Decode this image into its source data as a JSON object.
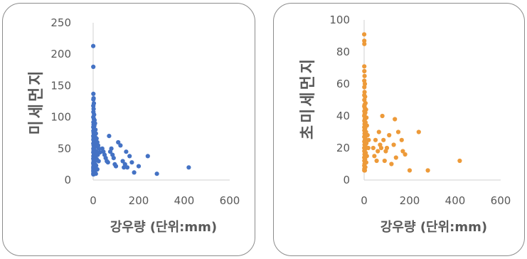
{
  "chart_data": [
    {
      "type": "scatter",
      "title": "",
      "xlabel": "강우량 (단위:mm)",
      "ylabel": "미세먼지",
      "xlim": [
        0,
        600
      ],
      "ylim": [
        0,
        250
      ],
      "xticks": [
        "0",
        "200",
        "400",
        "600"
      ],
      "yticks": [
        "0",
        "50",
        "100",
        "150",
        "200",
        "250"
      ],
      "color": "#4472c4",
      "grid": false,
      "points": [
        [
          0.3,
          213
        ],
        [
          0.5,
          180
        ],
        [
          1,
          137
        ],
        [
          2,
          130
        ],
        [
          1,
          128
        ],
        [
          3,
          122
        ],
        [
          0.5,
          118
        ],
        [
          2,
          113
        ],
        [
          1,
          108
        ],
        [
          4,
          104
        ],
        [
          0.5,
          100
        ],
        [
          3,
          97
        ],
        [
          6,
          95
        ],
        [
          1,
          92
        ],
        [
          8,
          90
        ],
        [
          2,
          88
        ],
        [
          5,
          86
        ],
        [
          0.5,
          84
        ],
        [
          3,
          82
        ],
        [
          10,
          80
        ],
        [
          1,
          78
        ],
        [
          6,
          77
        ],
        [
          2,
          75
        ],
        [
          12,
          74
        ],
        [
          4,
          72
        ],
        [
          0.5,
          70
        ],
        [
          8,
          69
        ],
        [
          2,
          67
        ],
        [
          15,
          66
        ],
        [
          1,
          64
        ],
        [
          5,
          62
        ],
        [
          3,
          60
        ],
        [
          18,
          60
        ],
        [
          0.5,
          58
        ],
        [
          7,
          57
        ],
        [
          2,
          55
        ],
        [
          22,
          55
        ],
        [
          10,
          53
        ],
        [
          4,
          51
        ],
        [
          1,
          50
        ],
        [
          25,
          50
        ],
        [
          6,
          48
        ],
        [
          2,
          47
        ],
        [
          14,
          45
        ],
        [
          0.5,
          44
        ],
        [
          30,
          44
        ],
        [
          8,
          42
        ],
        [
          3,
          40
        ],
        [
          20,
          40
        ],
        [
          1,
          38
        ],
        [
          11,
          37
        ],
        [
          5,
          35
        ],
        [
          0.5,
          34
        ],
        [
          16,
          33
        ],
        [
          2,
          32
        ],
        [
          7,
          30
        ],
        [
          24,
          30
        ],
        [
          1,
          28
        ],
        [
          4,
          27
        ],
        [
          0.5,
          26
        ],
        [
          9,
          25
        ],
        [
          2,
          24
        ],
        [
          13,
          23
        ],
        [
          1,
          21
        ],
        [
          6,
          20
        ],
        [
          0.5,
          19
        ],
        [
          3,
          18
        ],
        [
          18,
          17
        ],
        [
          1,
          16
        ],
        [
          5,
          15
        ],
        [
          0.5,
          14
        ],
        [
          2,
          13
        ],
        [
          8,
          12
        ],
        [
          1,
          11
        ],
        [
          3,
          10
        ],
        [
          12,
          10
        ],
        [
          0.5,
          9
        ],
        [
          2,
          9
        ],
        [
          40,
          50
        ],
        [
          45,
          45
        ],
        [
          50,
          40
        ],
        [
          55,
          35
        ],
        [
          60,
          30
        ],
        [
          65,
          28
        ],
        [
          70,
          70
        ],
        [
          75,
          45
        ],
        [
          80,
          50
        ],
        [
          85,
          40
        ],
        [
          90,
          35
        ],
        [
          95,
          25
        ],
        [
          100,
          22
        ],
        [
          110,
          60
        ],
        [
          120,
          55
        ],
        [
          130,
          30
        ],
        [
          135,
          20
        ],
        [
          140,
          25
        ],
        [
          145,
          45
        ],
        [
          150,
          20
        ],
        [
          160,
          38
        ],
        [
          170,
          28
        ],
        [
          180,
          12
        ],
        [
          200,
          22
        ],
        [
          240,
          38
        ],
        [
          280,
          10
        ],
        [
          420,
          20
        ]
      ]
    },
    {
      "type": "scatter",
      "title": "",
      "xlabel": "강우량 (단위:mm)",
      "ylabel": "초미세먼지",
      "xlim": [
        0,
        600
      ],
      "ylim": [
        0,
        100
      ],
      "xticks": [
        "0",
        "200",
        "400",
        "600"
      ],
      "yticks": [
        "0",
        "20",
        "40",
        "60",
        "80",
        "100"
      ],
      "color": "#ed9a39",
      "grid": false,
      "points": [
        [
          0.3,
          91
        ],
        [
          0.5,
          87
        ],
        [
          1,
          85
        ],
        [
          0.5,
          71
        ],
        [
          1,
          68
        ],
        [
          2,
          65
        ],
        [
          0.5,
          62
        ],
        [
          3,
          60
        ],
        [
          1,
          58
        ],
        [
          2,
          55
        ],
        [
          0.5,
          53
        ],
        [
          4,
          52
        ],
        [
          1,
          50
        ],
        [
          6,
          48
        ],
        [
          2,
          47
        ],
        [
          0.5,
          46
        ],
        [
          3,
          45
        ],
        [
          8,
          44
        ],
        [
          1,
          43
        ],
        [
          5,
          42
        ],
        [
          2,
          41
        ],
        [
          0.5,
          40
        ],
        [
          10,
          39
        ],
        [
          3,
          38
        ],
        [
          1,
          37
        ],
        [
          6,
          36
        ],
        [
          2,
          35
        ],
        [
          12,
          34
        ],
        [
          0.5,
          33
        ],
        [
          4,
          32
        ],
        [
          1,
          31
        ],
        [
          8,
          30
        ],
        [
          2,
          29
        ],
        [
          15,
          28
        ],
        [
          0.5,
          27
        ],
        [
          5,
          26
        ],
        [
          3,
          25
        ],
        [
          1,
          24
        ],
        [
          10,
          23
        ],
        [
          2,
          22
        ],
        [
          6,
          21
        ],
        [
          0.5,
          20
        ],
        [
          18,
          20
        ],
        [
          3,
          19
        ],
        [
          1,
          18
        ],
        [
          7,
          17
        ],
        [
          2,
          16
        ],
        [
          12,
          15
        ],
        [
          0.5,
          14
        ],
        [
          4,
          13
        ],
        [
          1,
          12
        ],
        [
          9,
          11
        ],
        [
          2,
          10
        ],
        [
          0.5,
          9
        ],
        [
          5,
          8
        ],
        [
          1,
          7
        ],
        [
          3,
          6
        ],
        [
          0.5,
          6
        ],
        [
          20,
          25
        ],
        [
          40,
          20
        ],
        [
          45,
          15
        ],
        [
          50,
          25
        ],
        [
          55,
          12
        ],
        [
          60,
          18
        ],
        [
          65,
          30
        ],
        [
          70,
          22
        ],
        [
          75,
          20
        ],
        [
          80,
          40
        ],
        [
          85,
          25
        ],
        [
          90,
          12
        ],
        [
          95,
          18
        ],
        [
          100,
          20
        ],
        [
          110,
          28
        ],
        [
          120,
          10
        ],
        [
          130,
          22
        ],
        [
          135,
          38
        ],
        [
          140,
          14
        ],
        [
          150,
          30
        ],
        [
          165,
          25
        ],
        [
          170,
          18
        ],
        [
          180,
          16
        ],
        [
          200,
          6
        ],
        [
          240,
          30
        ],
        [
          280,
          6
        ],
        [
          420,
          12
        ]
      ]
    }
  ]
}
